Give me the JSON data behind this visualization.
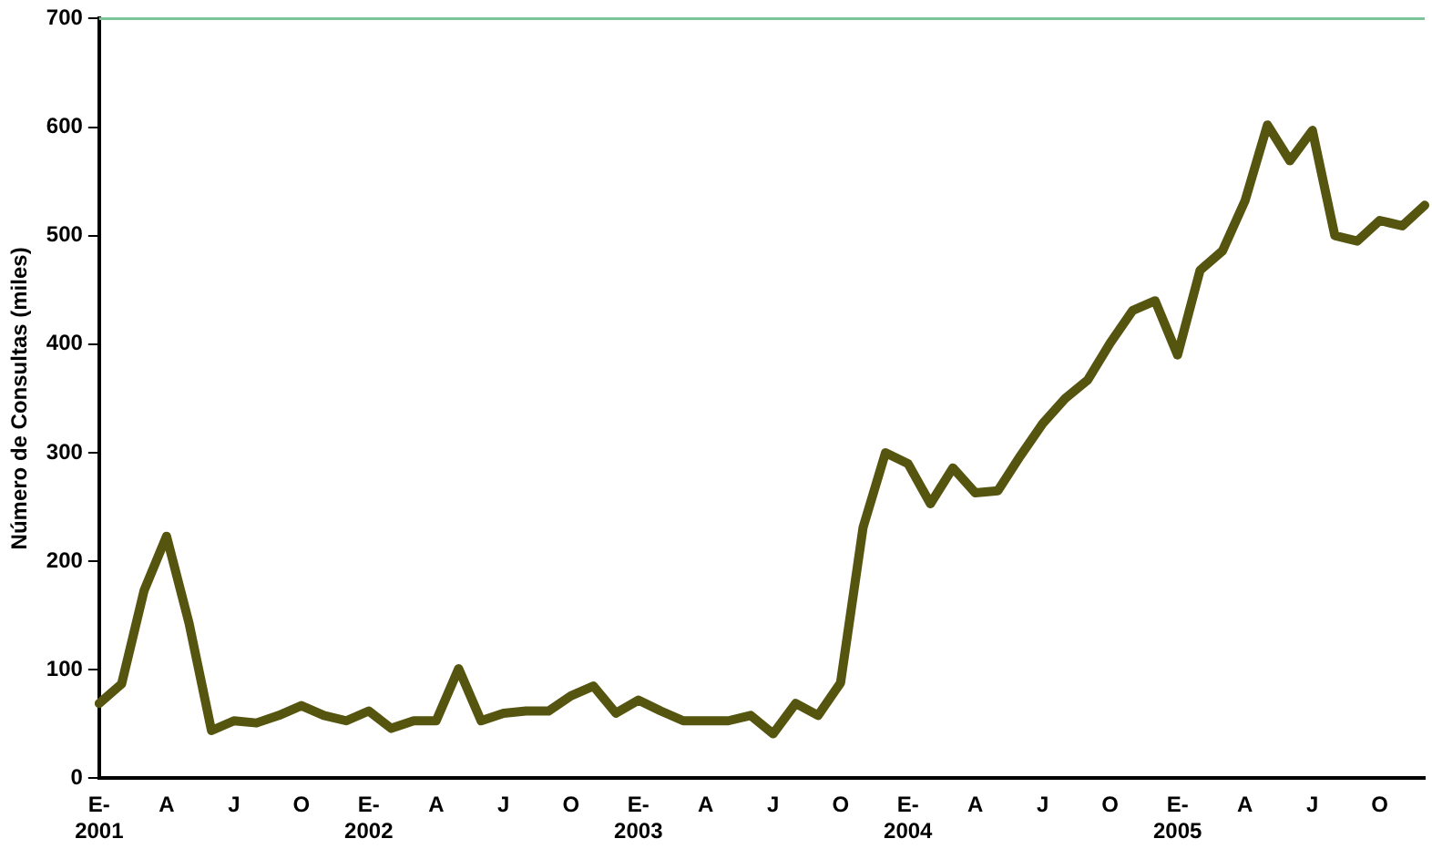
{
  "chart_data": {
    "type": "line",
    "ylabel": "Número de Consultas (miles)",
    "categories": [
      "E-\n2001",
      null,
      null,
      "A",
      null,
      null,
      "J",
      null,
      null,
      "O",
      null,
      null,
      "E-\n2002",
      null,
      null,
      "A",
      null,
      null,
      "J",
      null,
      null,
      "O",
      null,
      null,
      "E-\n2003",
      null,
      null,
      "A",
      null,
      null,
      "J",
      null,
      null,
      "O",
      null,
      null,
      "E-\n2004",
      null,
      null,
      "A",
      null,
      null,
      "J",
      null,
      null,
      "O",
      null,
      null,
      "E-\n2005",
      null,
      null,
      "A",
      null,
      null,
      "J",
      null,
      null,
      "O",
      null,
      null
    ],
    "series": [
      {
        "color": "#55550f",
        "values": [
          69,
          87,
          173,
          223,
          143,
          44,
          53,
          51,
          58,
          67,
          58,
          53,
          62,
          46,
          53,
          53,
          101,
          53,
          60,
          62,
          62,
          76,
          85,
          60,
          72,
          62,
          53,
          53,
          53,
          58,
          41,
          69,
          58,
          88,
          231,
          300,
          290,
          253,
          286,
          263,
          265,
          297,
          327,
          350,
          367,
          401,
          431,
          440,
          390,
          468,
          486,
          532,
          602,
          569,
          597,
          500,
          495,
          514,
          509,
          528
        ]
      }
    ],
    "ylim": [
      0,
      700
    ],
    "yticks": [
      0,
      100,
      200,
      300,
      400,
      500,
      600,
      700
    ],
    "ref_lines": [
      {
        "axis": "y",
        "value": 700,
        "color": "#7cc49a"
      }
    ],
    "grid": false,
    "legend": false,
    "marker": "none",
    "line_style": "solid"
  }
}
